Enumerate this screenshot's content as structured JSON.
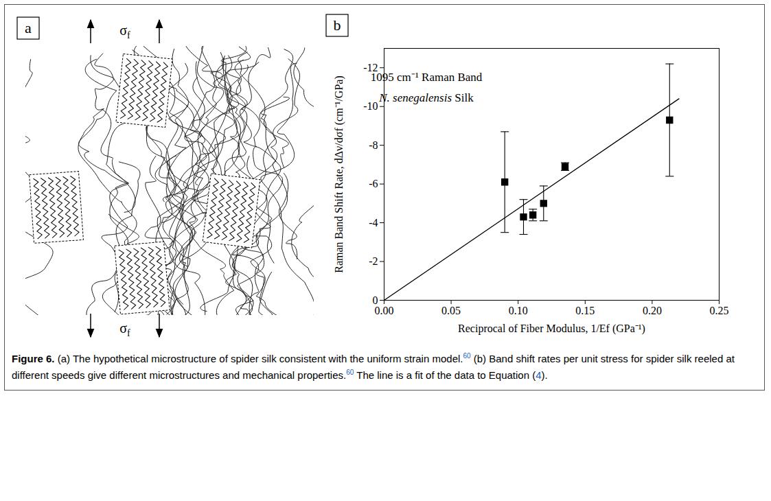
{
  "panel_a": {
    "letter": "a",
    "stress_label": "σf"
  },
  "panel_b": {
    "letter": "b"
  },
  "chart_data": {
    "type": "scatter",
    "annotations": [
      [
        {
          "text": "1095 cm⁻¹ Raman Band"
        }
      ],
      [
        {
          "text": "N. senegalensis",
          "italic": true
        },
        {
          "text": " Silk"
        }
      ]
    ],
    "x_label": "Reciprocal of Fiber Modulus, 1/Ef (GPa⁻¹)",
    "y_label": "Raman Band Shift Rate, dΔν/dσf (cm⁻¹/GPa)",
    "xlim": [
      0,
      0.25
    ],
    "xticks": [
      {
        "value": 0,
        "label": "0.00"
      },
      {
        "value": 0.05,
        "label": "0.05"
      },
      {
        "value": 0.1,
        "label": "0.10"
      },
      {
        "value": 0.15,
        "label": "0.15"
      },
      {
        "value": 0.2,
        "label": "0.20"
      },
      {
        "value": 0.25,
        "label": "0.25"
      }
    ],
    "ylim": [
      0,
      -13
    ],
    "yticks": [
      0,
      -2,
      -4,
      -6,
      -8,
      -10,
      -12
    ],
    "grid": false,
    "series": [
      {
        "type": "scatter",
        "marker": "square",
        "color": "#000000",
        "x": [
          0.09,
          0.104,
          0.111,
          0.119,
          0.135,
          0.213
        ],
        "values": [
          -6.1,
          -4.3,
          -4.4,
          -5.0,
          -6.9,
          -9.3
        ],
        "errors": [
          2.6,
          0.9,
          0.3,
          0.9,
          0.2,
          2.9
        ]
      },
      {
        "type": "line",
        "line_style": "solid",
        "color": "#000000",
        "x": [
          0,
          0.22
        ],
        "values": [
          0,
          -10.4
        ]
      }
    ]
  },
  "caption": [
    {
      "text": "Figure 6.",
      "bold": true
    },
    {
      "text": " (a) The hypothetical microstructure of spider silk consistent with the uniform strain model."
    },
    {
      "text": "60",
      "ref": true
    },
    {
      "text": " (b) Band shift rates per unit stress for spider silk reeled at different speeds give different microstructures and mechanical properties."
    },
    {
      "text": "60",
      "ref": true
    },
    {
      "text": " The line is a fit of the data to Equation ("
    },
    {
      "text": "4",
      "ref": true,
      "inline": true
    },
    {
      "text": ")."
    }
  ]
}
